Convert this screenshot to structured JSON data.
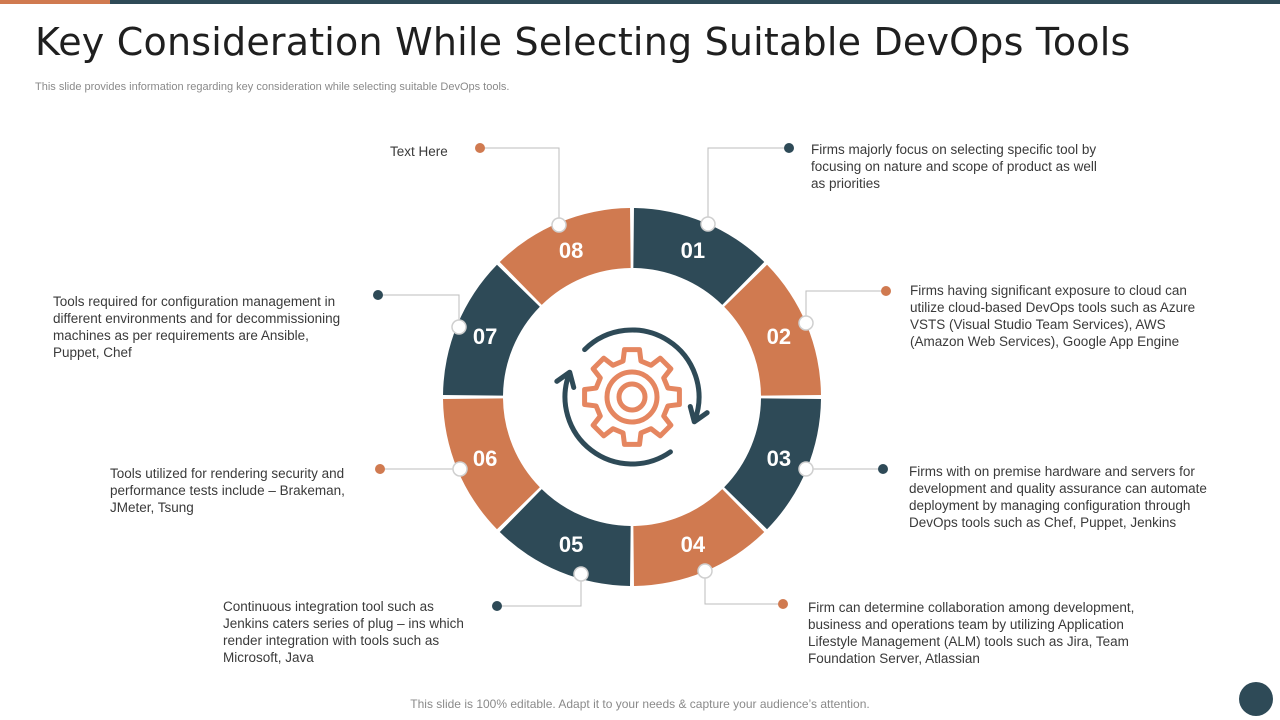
{
  "title": "Key Consideration While Selecting Suitable DevOps Tools",
  "subtitle": "This slide provides information regarding key consideration while selecting suitable DevOps tools.",
  "footer": "This slide is 100% editable. Adapt it to your needs & capture your audience’s attention.",
  "colors": {
    "orange": "#d07a50",
    "navy": "#2e4a57",
    "gear": "#e58660"
  },
  "center_icon": "gear-with-cycle-arrows-icon",
  "segments": [
    {
      "number": "01",
      "color": "navy",
      "text": "Firms majorly focus on selecting specific tool by focusing on nature and scope of product as well as priorities"
    },
    {
      "number": "02",
      "color": "orange",
      "text": "Firms having significant exposure to cloud can utilize cloud-based DevOps tools such as Azure VSTS (Visual Studio Team Services), AWS (Amazon Web Services), Google App Engine"
    },
    {
      "number": "03",
      "color": "navy",
      "text": "Firms with on premise hardware and servers for development and quality assurance can automate deployment by managing configuration through DevOps tools such as Chef, Puppet, Jenkins"
    },
    {
      "number": "04",
      "color": "orange",
      "text": "Firm can determine collaboration among development, business and operations team by utilizing Application Lifestyle Management (ALM) tools such as Jira, Team Foundation Server, Atlassian"
    },
    {
      "number": "05",
      "color": "navy",
      "text": "Continuous integration tool such as Jenkins caters series of plug – ins which render integration with tools such as Microsoft, Java"
    },
    {
      "number": "06",
      "color": "orange",
      "text": "Tools utilized for rendering security and performance tests include – Brakeman, JMeter, Tsung"
    },
    {
      "number": "07",
      "color": "navy",
      "text": "Tools required for configuration management in different environments and for decommissioning machines as per requirements are Ansible, Puppet, Chef"
    },
    {
      "number": "08",
      "color": "orange",
      "text": "Text Here"
    }
  ]
}
